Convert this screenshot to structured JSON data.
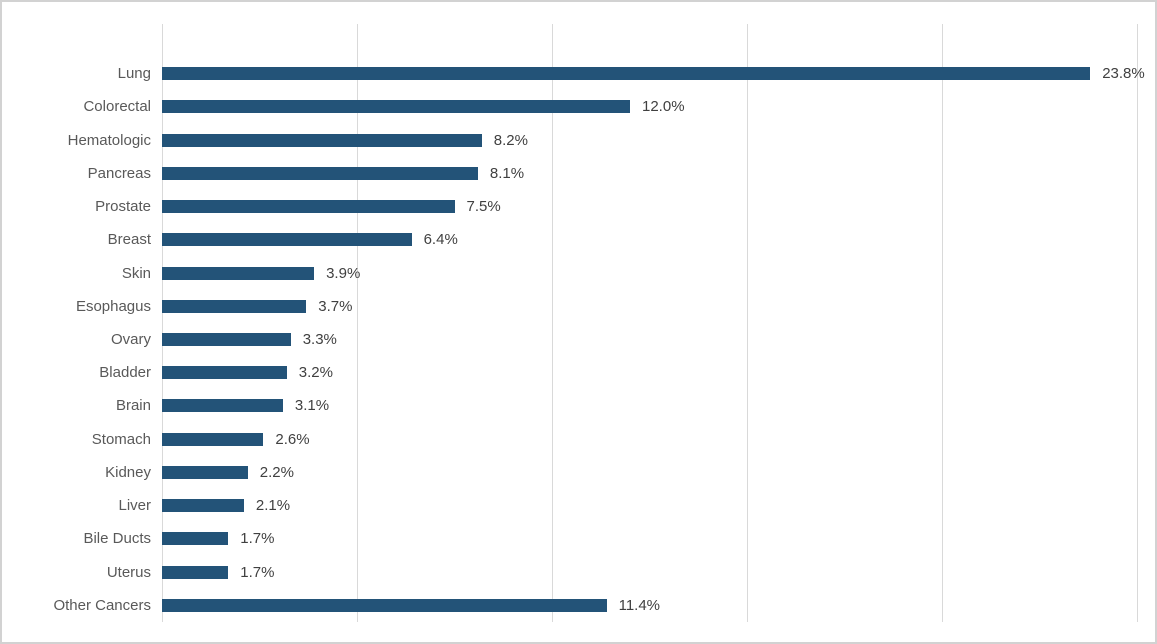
{
  "chart_data": {
    "type": "bar",
    "orientation": "horizontal",
    "categories": [
      "Lung",
      "Colorectal",
      "Hematologic",
      "Pancreas",
      "Prostate",
      "Breast",
      "Skin",
      "Esophagus",
      "Ovary",
      "Bladder",
      "Brain",
      "Stomach",
      "Kidney",
      "Liver",
      "Bile Ducts",
      "Uterus",
      "Other Cancers"
    ],
    "values": [
      23.8,
      12.0,
      8.2,
      8.1,
      7.5,
      6.4,
      3.9,
      3.7,
      3.3,
      3.2,
      3.1,
      2.6,
      2.2,
      2.1,
      1.7,
      1.7,
      11.4
    ],
    "value_labels": [
      "23.8%",
      "12.0%",
      "8.2%",
      "8.1%",
      "7.5%",
      "6.4%",
      "3.9%",
      "3.7%",
      "3.3%",
      "3.2%",
      "3.1%",
      "2.6%",
      "2.2%",
      "2.1%",
      "1.7%",
      "1.7%",
      "11.4%"
    ],
    "xlabel": "",
    "ylabel": "",
    "xlim": [
      0,
      25
    ],
    "gridline_interval": 5,
    "grid": true,
    "legend": false,
    "axis_tick_labels_visible": false,
    "data_labels_visible": true
  },
  "colors": {
    "bar": "#235378",
    "gridline": "#d9d9d9",
    "category_label": "#595959",
    "value_label": "#404040",
    "background": "#ffffff",
    "frame_border": "#d2d2d2"
  }
}
